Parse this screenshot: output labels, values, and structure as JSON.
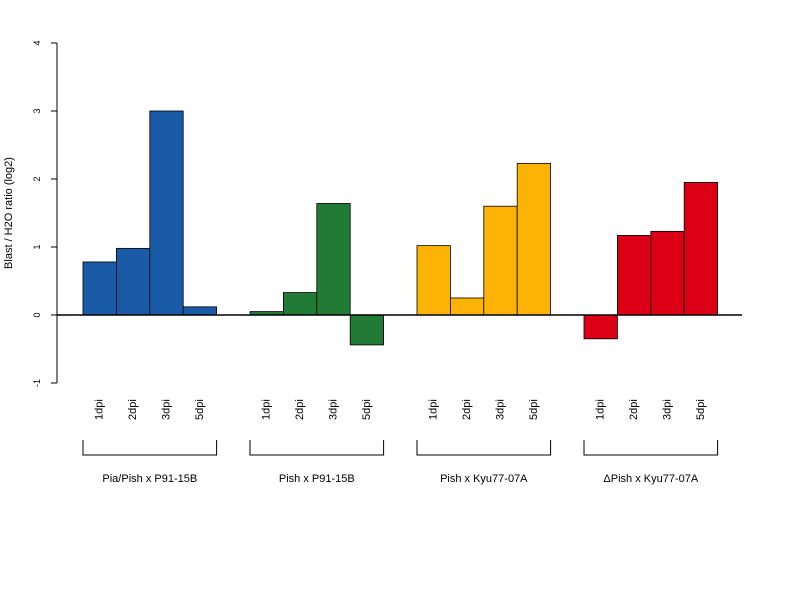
{
  "chart_data": {
    "type": "bar",
    "ylabel": "Blast / H2O ratio (log2)",
    "ylim": [
      -1,
      4
    ],
    "yticks": [
      -1,
      0,
      1,
      2,
      3,
      4
    ],
    "categories": [
      "1dpi",
      "2dpi",
      "3dpi",
      "5dpi"
    ],
    "groups": [
      {
        "name": "Pia/Pish x P91-15B",
        "color": "#1a5ba8",
        "values": [
          0.78,
          0.98,
          3.0,
          0.12
        ]
      },
      {
        "name": "Pish x P91-15B",
        "color": "#217a36",
        "values": [
          0.05,
          0.33,
          1.64,
          -0.44
        ]
      },
      {
        "name": "Pish x Kyu77-07A",
        "color": "#fdb305",
        "values": [
          1.02,
          0.25,
          1.6,
          2.23
        ]
      },
      {
        "name": "ΔPish x Kyu77-07A",
        "color": "#dc0017",
        "values": [
          -0.35,
          1.17,
          1.23,
          1.95
        ]
      }
    ]
  }
}
